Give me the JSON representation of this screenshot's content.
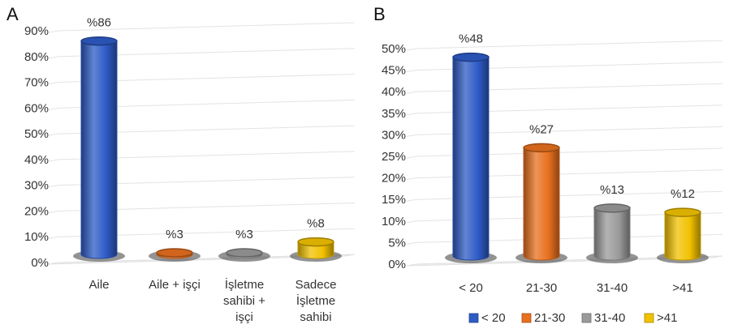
{
  "chart_data": [
    {
      "panel_label": "A",
      "type": "bar",
      "categories": [
        [
          "Aile"
        ],
        [
          "Aile  + işçi"
        ],
        [
          "İşletme",
          "sahibi +",
          "işçi"
        ],
        [
          "Sadece",
          "İşletme",
          "sahibi"
        ]
      ],
      "values": [
        86,
        3,
        3,
        8
      ],
      "data_labels": [
        "%86",
        "%3",
        "%3",
        "%8"
      ],
      "colors": [
        "#2E5BC6",
        "#E8701F",
        "#9A9A9A",
        "#F2C200"
      ],
      "ylim": [
        0,
        90
      ],
      "yticks": [
        "0%",
        "10%",
        "20%",
        "30%",
        "40%",
        "50%",
        "60%",
        "70%",
        "80%",
        "90%"
      ],
      "grid": true
    },
    {
      "panel_label": "B",
      "type": "bar",
      "categories": [
        [
          "< 20"
        ],
        [
          "21-30"
        ],
        [
          "31-40"
        ],
        [
          ">41"
        ]
      ],
      "values": [
        48,
        27,
        13,
        12
      ],
      "data_labels": [
        "%48",
        "%27",
        "%13",
        "%12"
      ],
      "colors": [
        "#2E5BC6",
        "#E8701F",
        "#9A9A9A",
        "#F2C200"
      ],
      "ylim": [
        0,
        50
      ],
      "yticks": [
        "0%",
        "5%",
        "10%",
        "15%",
        "20%",
        "25%",
        "30%",
        "35%",
        "40%",
        "45%",
        "50%"
      ],
      "grid": true,
      "legend": {
        "position": "bottom",
        "entries": [
          "< 20",
          "21-30",
          "31-40",
          ">41"
        ]
      }
    }
  ]
}
